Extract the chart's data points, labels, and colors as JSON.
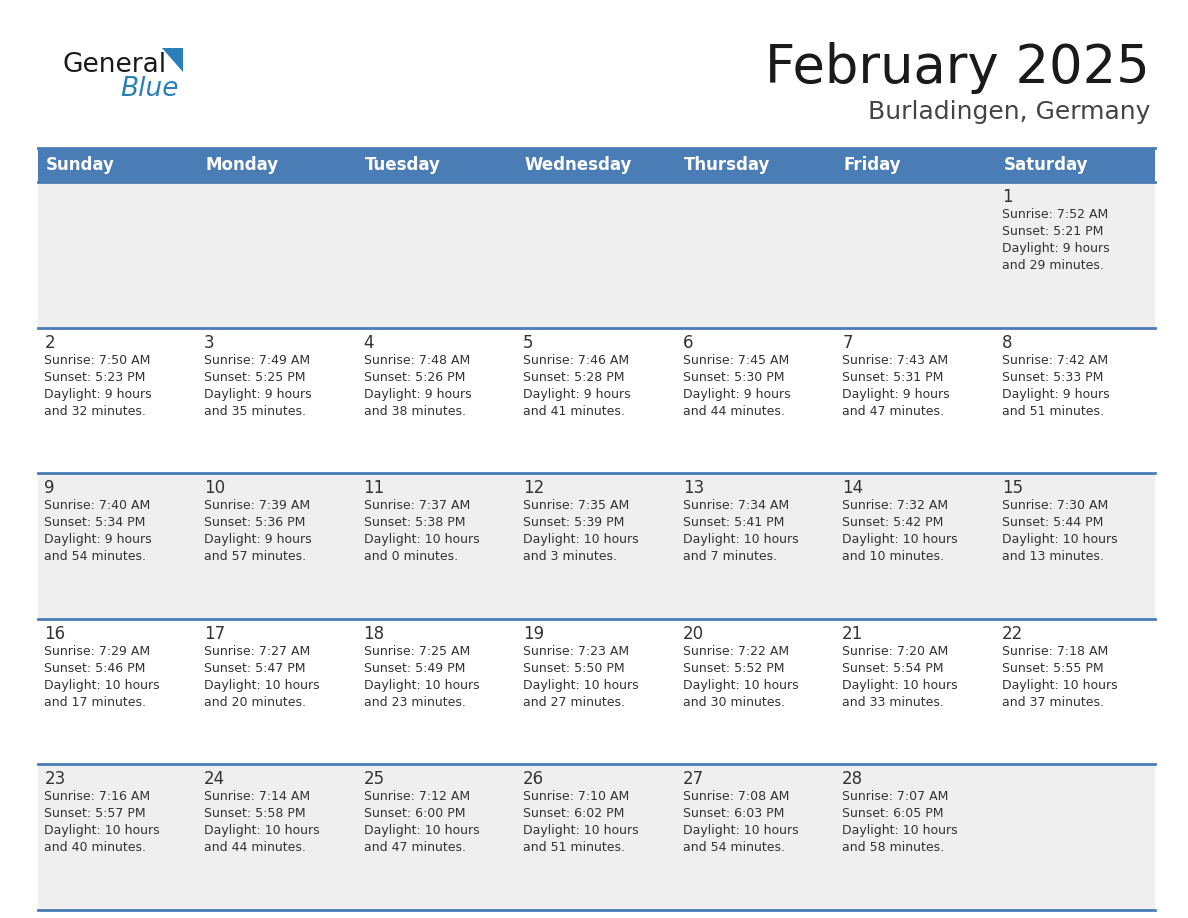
{
  "title": "February 2025",
  "subtitle": "Burladingen, Germany",
  "header_color": "#4a7cb5",
  "header_text_color": "#ffffff",
  "days_of_week": [
    "Sunday",
    "Monday",
    "Tuesday",
    "Wednesday",
    "Thursday",
    "Friday",
    "Saturday"
  ],
  "row_bg_even": "#efefef",
  "row_bg_odd": "#ffffff",
  "divider_color": "#4a7cb5",
  "text_color": "#333333",
  "calendar": [
    [
      {
        "day": null,
        "sunrise": null,
        "sunset": null,
        "daylight": null
      },
      {
        "day": null,
        "sunrise": null,
        "sunset": null,
        "daylight": null
      },
      {
        "day": null,
        "sunrise": null,
        "sunset": null,
        "daylight": null
      },
      {
        "day": null,
        "sunrise": null,
        "sunset": null,
        "daylight": null
      },
      {
        "day": null,
        "sunrise": null,
        "sunset": null,
        "daylight": null
      },
      {
        "day": null,
        "sunrise": null,
        "sunset": null,
        "daylight": null
      },
      {
        "day": 1,
        "sunrise": "7:52 AM",
        "sunset": "5:21 PM",
        "daylight": "9 hours\nand 29 minutes."
      }
    ],
    [
      {
        "day": 2,
        "sunrise": "7:50 AM",
        "sunset": "5:23 PM",
        "daylight": "9 hours\nand 32 minutes."
      },
      {
        "day": 3,
        "sunrise": "7:49 AM",
        "sunset": "5:25 PM",
        "daylight": "9 hours\nand 35 minutes."
      },
      {
        "day": 4,
        "sunrise": "7:48 AM",
        "sunset": "5:26 PM",
        "daylight": "9 hours\nand 38 minutes."
      },
      {
        "day": 5,
        "sunrise": "7:46 AM",
        "sunset": "5:28 PM",
        "daylight": "9 hours\nand 41 minutes."
      },
      {
        "day": 6,
        "sunrise": "7:45 AM",
        "sunset": "5:30 PM",
        "daylight": "9 hours\nand 44 minutes."
      },
      {
        "day": 7,
        "sunrise": "7:43 AM",
        "sunset": "5:31 PM",
        "daylight": "9 hours\nand 47 minutes."
      },
      {
        "day": 8,
        "sunrise": "7:42 AM",
        "sunset": "5:33 PM",
        "daylight": "9 hours\nand 51 minutes."
      }
    ],
    [
      {
        "day": 9,
        "sunrise": "7:40 AM",
        "sunset": "5:34 PM",
        "daylight": "9 hours\nand 54 minutes."
      },
      {
        "day": 10,
        "sunrise": "7:39 AM",
        "sunset": "5:36 PM",
        "daylight": "9 hours\nand 57 minutes."
      },
      {
        "day": 11,
        "sunrise": "7:37 AM",
        "sunset": "5:38 PM",
        "daylight": "10 hours\nand 0 minutes."
      },
      {
        "day": 12,
        "sunrise": "7:35 AM",
        "sunset": "5:39 PM",
        "daylight": "10 hours\nand 3 minutes."
      },
      {
        "day": 13,
        "sunrise": "7:34 AM",
        "sunset": "5:41 PM",
        "daylight": "10 hours\nand 7 minutes."
      },
      {
        "day": 14,
        "sunrise": "7:32 AM",
        "sunset": "5:42 PM",
        "daylight": "10 hours\nand 10 minutes."
      },
      {
        "day": 15,
        "sunrise": "7:30 AM",
        "sunset": "5:44 PM",
        "daylight": "10 hours\nand 13 minutes."
      }
    ],
    [
      {
        "day": 16,
        "sunrise": "7:29 AM",
        "sunset": "5:46 PM",
        "daylight": "10 hours\nand 17 minutes."
      },
      {
        "day": 17,
        "sunrise": "7:27 AM",
        "sunset": "5:47 PM",
        "daylight": "10 hours\nand 20 minutes."
      },
      {
        "day": 18,
        "sunrise": "7:25 AM",
        "sunset": "5:49 PM",
        "daylight": "10 hours\nand 23 minutes."
      },
      {
        "day": 19,
        "sunrise": "7:23 AM",
        "sunset": "5:50 PM",
        "daylight": "10 hours\nand 27 minutes."
      },
      {
        "day": 20,
        "sunrise": "7:22 AM",
        "sunset": "5:52 PM",
        "daylight": "10 hours\nand 30 minutes."
      },
      {
        "day": 21,
        "sunrise": "7:20 AM",
        "sunset": "5:54 PM",
        "daylight": "10 hours\nand 33 minutes."
      },
      {
        "day": 22,
        "sunrise": "7:18 AM",
        "sunset": "5:55 PM",
        "daylight": "10 hours\nand 37 minutes."
      }
    ],
    [
      {
        "day": 23,
        "sunrise": "7:16 AM",
        "sunset": "5:57 PM",
        "daylight": "10 hours\nand 40 minutes."
      },
      {
        "day": 24,
        "sunrise": "7:14 AM",
        "sunset": "5:58 PM",
        "daylight": "10 hours\nand 44 minutes."
      },
      {
        "day": 25,
        "sunrise": "7:12 AM",
        "sunset": "6:00 PM",
        "daylight": "10 hours\nand 47 minutes."
      },
      {
        "day": 26,
        "sunrise": "7:10 AM",
        "sunset": "6:02 PM",
        "daylight": "10 hours\nand 51 minutes."
      },
      {
        "day": 27,
        "sunrise": "7:08 AM",
        "sunset": "6:03 PM",
        "daylight": "10 hours\nand 54 minutes."
      },
      {
        "day": 28,
        "sunrise": "7:07 AM",
        "sunset": "6:05 PM",
        "daylight": "10 hours\nand 58 minutes."
      },
      {
        "day": null,
        "sunrise": null,
        "sunset": null,
        "daylight": null
      }
    ]
  ],
  "logo_text_general": "General",
  "logo_text_blue": "Blue",
  "logo_color_general": "#1a1a1a",
  "logo_color_blue": "#2980b9",
  "logo_triangle_color": "#2980b9"
}
